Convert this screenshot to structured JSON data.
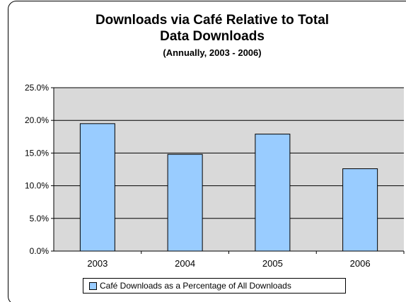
{
  "chart_data": {
    "type": "bar",
    "title_line1": "Downloads via Café Relative to Total",
    "title_line2": "Data Downloads",
    "subtitle": "(Annually, 2003 - 2006)",
    "categories": [
      "2003",
      "2004",
      "2005",
      "2006"
    ],
    "series": [
      {
        "name": "Café Downloads as a Percentage of All Downloads",
        "values": [
          19.5,
          14.8,
          17.9,
          12.6
        ],
        "color": "#99ccff"
      }
    ],
    "ylim": [
      0,
      25
    ],
    "yticks": [
      0,
      5,
      10,
      15,
      20,
      25
    ],
    "ytick_labels": [
      "0.0%",
      "5.0%",
      "10.0%",
      "15.0%",
      "20.0%",
      "25.0%"
    ],
    "grid": true,
    "plot_background": "#d9d9d9",
    "legend_position": "bottom"
  }
}
